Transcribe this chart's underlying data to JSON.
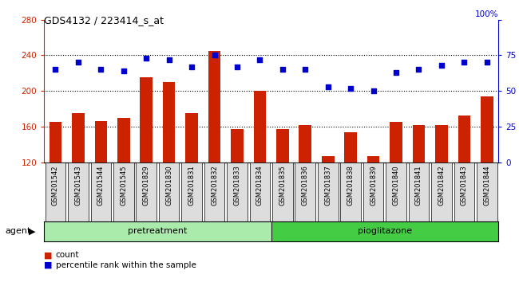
{
  "title": "GDS4132 / 223414_s_at",
  "categories": [
    "GSM201542",
    "GSM201543",
    "GSM201544",
    "GSM201545",
    "GSM201829",
    "GSM201830",
    "GSM201831",
    "GSM201832",
    "GSM201833",
    "GSM201834",
    "GSM201835",
    "GSM201836",
    "GSM201837",
    "GSM201838",
    "GSM201839",
    "GSM201840",
    "GSM201841",
    "GSM201842",
    "GSM201843",
    "GSM201844"
  ],
  "count_values": [
    165,
    175,
    166,
    170,
    215,
    210,
    175,
    245,
    157,
    200,
    157,
    162,
    127,
    154,
    127,
    165,
    162,
    162,
    172,
    194
  ],
  "percentile_values": [
    65,
    70,
    65,
    64,
    73,
    72,
    67,
    75,
    67,
    72,
    65,
    65,
    53,
    52,
    50,
    63,
    65,
    68,
    70,
    70
  ],
  "ylim_left": [
    120,
    280
  ],
  "ylim_right": [
    0,
    100
  ],
  "yticks_left": [
    120,
    160,
    200,
    240,
    280
  ],
  "yticks_right": [
    0,
    25,
    50,
    75,
    100
  ],
  "bar_color": "#cc2200",
  "dot_color": "#0000cc",
  "pretreatment_color": "#aaeaaa",
  "pioglitazone_color": "#44cc44",
  "group_border_color": "#000000",
  "legend_items": [
    {
      "label": "count",
      "color": "#cc2200"
    },
    {
      "label": "percentile rank within the sample",
      "color": "#0000cc"
    }
  ],
  "agent_label": "agent",
  "pretreatment_label": "pretreatment",
  "pioglitazone_label": "pioglitazone",
  "pretreatment_count": 10,
  "pioglitazone_count": 10,
  "right_axis_top_label": "100%"
}
